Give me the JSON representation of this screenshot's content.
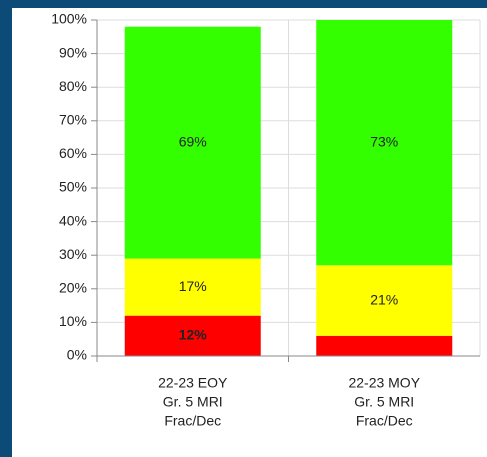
{
  "chart_data": {
    "type": "stacked_bar",
    "categories": [
      [
        "22-23 EOY",
        "Gr. 5 MRI",
        "Frac/Dec"
      ],
      [
        "22-23 MOY",
        "Gr. 5 MRI",
        "Frac/Dec"
      ]
    ],
    "series": [
      {
        "name": "Red",
        "color": "#ff0000",
        "label_color": "#ffffff",
        "label_bold": true,
        "values": [
          12,
          6
        ],
        "value_labels": [
          "12%",
          null
        ]
      },
      {
        "name": "Yellow",
        "color": "#ffff00",
        "label_color": "#333333",
        "label_bold": false,
        "values": [
          17,
          21
        ],
        "value_labels": [
          "17%",
          "21%"
        ]
      },
      {
        "name": "Green",
        "color": "#33ff00",
        "label_color": "#333333",
        "label_bold": false,
        "values": [
          69,
          73
        ],
        "value_labels": [
          "69%",
          "73%"
        ]
      }
    ],
    "ylim": [
      0,
      100
    ],
    "yticks": [
      {
        "value": 0,
        "label": "0%"
      },
      {
        "value": 10,
        "label": "10%"
      },
      {
        "value": 20,
        "label": "20%"
      },
      {
        "value": 30,
        "label": "30%"
      },
      {
        "value": 40,
        "label": "40%"
      },
      {
        "value": 50,
        "label": "50%"
      },
      {
        "value": 60,
        "label": "60%"
      },
      {
        "value": 70,
        "label": "70%"
      },
      {
        "value": 80,
        "label": "80%"
      },
      {
        "value": 90,
        "label": "90%"
      },
      {
        "value": 100,
        "label": "100%"
      }
    ],
    "grid": true
  }
}
